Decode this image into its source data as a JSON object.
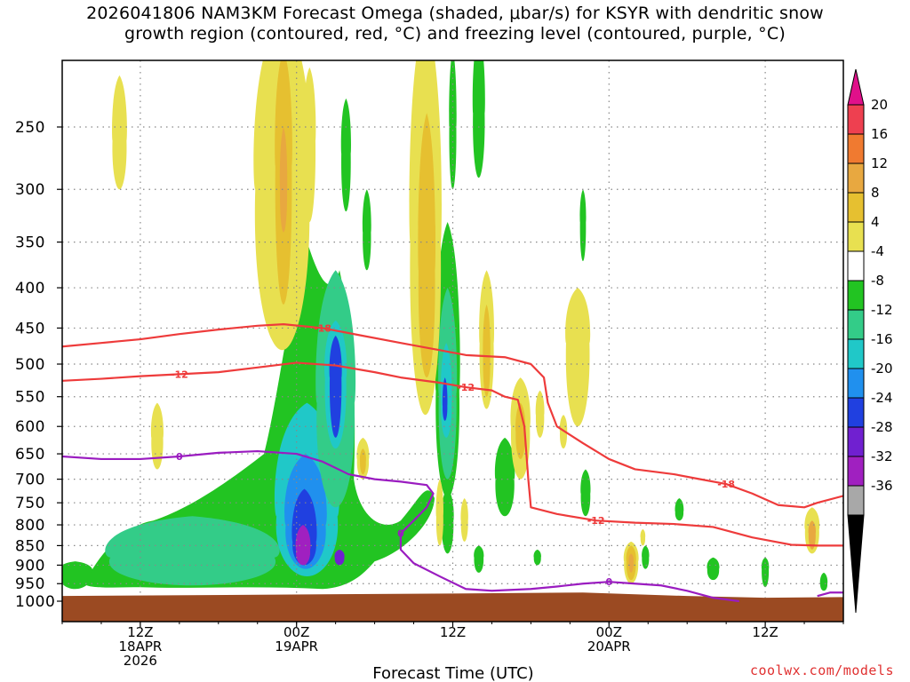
{
  "title_line1": "2026041806 NAM3KM Forecast Omega (shaded, μbar/s) for KSYR with dendritic snow",
  "title_line2": "growth region (contoured, red, °C) and freezing level (contoured, purple, °C)",
  "credit": "coolwx.com/models",
  "chart_data": {
    "type": "heatmap",
    "title": "2026041806 NAM3KM Forecast Omega (shaded, μbar/s) for KSYR with dendritic snow growth region (contoured, red, °C) and freezing level (contoured, purple, °C)",
    "xlabel": "Forecast Time (UTC)",
    "ylabel": "",
    "y_scale": "log-pressure (reversed)",
    "ylim": [
      1000,
      200
    ],
    "y_ticks": [
      250,
      300,
      350,
      400,
      450,
      500,
      550,
      600,
      650,
      700,
      750,
      800,
      850,
      900,
      950,
      1000
    ],
    "x_ticks": [
      {
        "hour": 6,
        "label": [
          "12Z",
          "18APR",
          "2026"
        ]
      },
      {
        "hour": 18,
        "label": [
          "00Z",
          "19APR"
        ]
      },
      {
        "hour": 30,
        "label": [
          "12Z"
        ]
      },
      {
        "hour": 42,
        "label": [
          "00Z",
          "20APR"
        ]
      },
      {
        "hour": 54,
        "label": [
          "12Z"
        ]
      }
    ],
    "xlim": [
      0,
      60
    ],
    "grid": true,
    "colorbar": {
      "unit": "μbar/s",
      "labels": [
        20,
        16,
        12,
        8,
        4,
        -4,
        -8,
        -12,
        -16,
        -20,
        -24,
        -28,
        -32,
        -36
      ],
      "colors": [
        "#ee4050",
        "#f07a30",
        "#e8a840",
        "#e6c030",
        "#e8e050",
        "#ffffff",
        "#22c422",
        "#33cc88",
        "#20c8c8",
        "#2090ee",
        "#2040e0",
        "#7020d0",
        "#a020c0",
        "#a8a8a8"
      ]
    },
    "red_contours": [
      {
        "label": "-18",
        "points": [
          [
            0,
            475
          ],
          [
            3,
            470
          ],
          [
            6,
            465
          ],
          [
            9,
            458
          ],
          [
            12,
            452
          ],
          [
            15,
            447
          ],
          [
            17,
            445
          ],
          [
            20,
            450
          ],
          [
            23,
            460
          ],
          [
            26,
            470
          ],
          [
            29,
            480
          ],
          [
            31,
            487
          ],
          [
            34,
            490
          ],
          [
            36,
            500
          ],
          [
            37,
            520
          ],
          [
            37.3,
            560
          ],
          [
            38,
            600
          ],
          [
            40,
            630
          ],
          [
            42,
            660
          ],
          [
            44,
            680
          ],
          [
            47,
            690
          ],
          [
            49,
            700
          ],
          [
            51,
            710
          ],
          [
            53,
            730
          ],
          [
            55,
            755
          ],
          [
            57,
            760
          ],
          [
            58,
            750
          ],
          [
            60,
            735
          ]
        ]
      },
      {
        "label": "-12",
        "points": [
          [
            0,
            525
          ],
          [
            3,
            522
          ],
          [
            6,
            518
          ],
          [
            9,
            515
          ],
          [
            12,
            512
          ],
          [
            15,
            505
          ],
          [
            18,
            498
          ],
          [
            21,
            502
          ],
          [
            24,
            512
          ],
          [
            26,
            520
          ],
          [
            29,
            528
          ],
          [
            31,
            535
          ],
          [
            33,
            540
          ],
          [
            34,
            550
          ],
          [
            35,
            555
          ],
          [
            35.5,
            600
          ],
          [
            35.8,
            700
          ],
          [
            36,
            760
          ],
          [
            38,
            775
          ],
          [
            41,
            790
          ],
          [
            44,
            795
          ],
          [
            47,
            798
          ],
          [
            50,
            805
          ],
          [
            53,
            830
          ],
          [
            56,
            848
          ],
          [
            58,
            850
          ],
          [
            60,
            850
          ]
        ]
      }
    ],
    "purple_contours": [
      {
        "label": "0",
        "points": [
          [
            0,
            655
          ],
          [
            3,
            660
          ],
          [
            6,
            660
          ],
          [
            9,
            655
          ],
          [
            12,
            648
          ],
          [
            15,
            645
          ],
          [
            18,
            650
          ],
          [
            20,
            665
          ],
          [
            22,
            690
          ],
          [
            24,
            700
          ],
          [
            26,
            705
          ],
          [
            28,
            712
          ],
          [
            28.5,
            730
          ],
          [
            28,
            760
          ],
          [
            27,
            790
          ],
          [
            26,
            820
          ],
          [
            26,
            860
          ],
          [
            27,
            895
          ],
          [
            29,
            930
          ],
          [
            31,
            965
          ],
          [
            33,
            970
          ],
          [
            36,
            965
          ],
          [
            38,
            958
          ],
          [
            40,
            950
          ],
          [
            42,
            945
          ],
          [
            44,
            950
          ],
          [
            46,
            955
          ],
          [
            48,
            970
          ],
          [
            50,
            990
          ],
          [
            52,
            1000
          ]
        ]
      },
      {
        "label": "",
        "points": [
          [
            58,
            985
          ],
          [
            59,
            975
          ],
          [
            60,
            975
          ]
        ]
      }
    ],
    "omega_features": [
      {
        "sign": "up",
        "level": "-8",
        "shape": "broad low-level ascent 18Z-06Z",
        "approx_range_hours": [
          1,
          24
        ],
        "approx_p": [
          650,
          960
        ]
      },
      {
        "sign": "up",
        "level": "-24",
        "shape": "core near 00Z 19APR",
        "approx_range_hours": [
          17.5,
          20
        ],
        "approx_p": [
          700,
          900
        ]
      },
      {
        "sign": "up",
        "level": "-20",
        "shape": "tower",
        "approx_range_hours": [
          20,
          22
        ],
        "approx_p": [
          460,
          640
        ]
      },
      {
        "sign": "up",
        "level": "-16",
        "shape": "column near 12Z 19APR",
        "approx_range_hours": [
          28.5,
          31
        ],
        "approx_p": [
          380,
          720
        ]
      },
      {
        "sign": "down",
        "level": "8",
        "shape": "sinking column",
        "approx_range_hours": [
          15,
          19
        ],
        "approx_p": [
          180,
          480
        ]
      },
      {
        "sign": "down",
        "level": "12",
        "shape": "sinking column",
        "approx_range_hours": [
          27,
          29.5
        ],
        "approx_p": [
          180,
          540
        ]
      }
    ]
  }
}
